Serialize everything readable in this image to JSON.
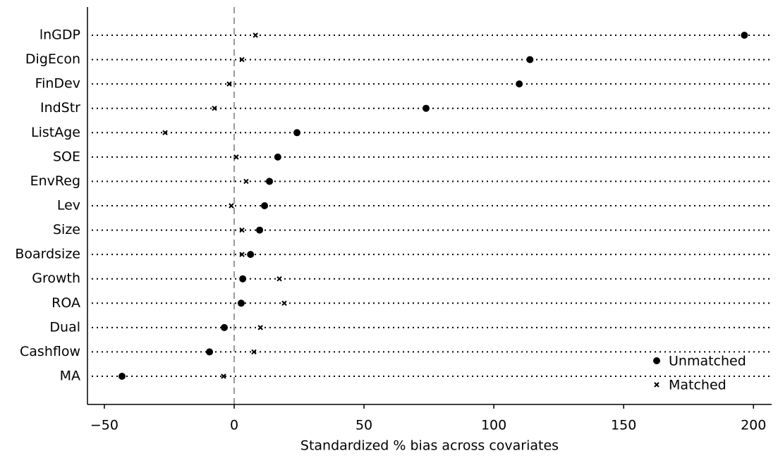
{
  "chart_data": {
    "type": "dot",
    "xlabel": "Standardized % bias across covariates",
    "categories": [
      "lnGDP",
      "DigEcon",
      "FinDev",
      "IndStr",
      "ListAge",
      "SOE",
      "EnvReg",
      "Lev",
      "Size",
      "Boardsize",
      "Growth",
      "ROA",
      "Dual",
      "Cashflow",
      "MA"
    ],
    "series": [
      {
        "name": "Unmatched",
        "color": "#000000",
        "marker": "circle",
        "values": [
          196.5,
          113.9,
          109.8,
          73.9,
          24.2,
          16.8,
          13.6,
          11.7,
          9.8,
          6.3,
          3.3,
          2.7,
          -3.8,
          -9.5,
          -43.2
        ]
      },
      {
        "name": "Matched",
        "color": "#000000",
        "marker": "x",
        "values": [
          8.2,
          3.0,
          -1.9,
          -7.6,
          -26.6,
          0.8,
          4.6,
          -1.1,
          3.0,
          3.0,
          17.4,
          19.3,
          10.1,
          7.6,
          -4.1
        ]
      }
    ],
    "xlim": [
      -56.5,
      207
    ],
    "xticks": [
      {
        "value": -50,
        "label": "−50"
      },
      0,
      50,
      100,
      150,
      200
    ],
    "vline": 0,
    "grid": true,
    "legend": "lower right"
  }
}
